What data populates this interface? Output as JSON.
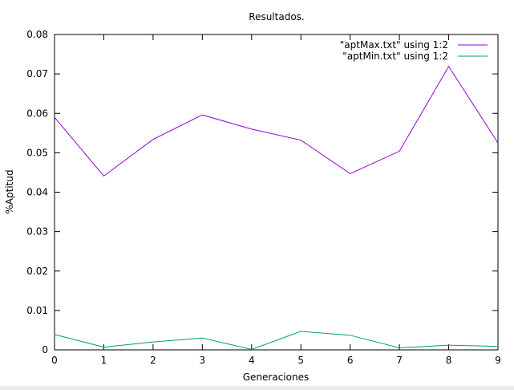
{
  "chart_data": {
    "type": "line",
    "title": "Resultados.",
    "xlabel": "Generaciones",
    "ylabel": "%Aptitud",
    "xlim": [
      0,
      9
    ],
    "ylim": [
      0,
      0.08
    ],
    "xticks": [
      0,
      1,
      2,
      3,
      4,
      5,
      6,
      7,
      8,
      9
    ],
    "yticks": [
      "0",
      "0.01",
      "0.02",
      "0.03",
      "0.04",
      "0.05",
      "0.06",
      "0.07",
      "0.08"
    ],
    "grid": false,
    "legend_position": "top-right",
    "x": [
      0,
      1,
      2,
      3,
      4,
      5,
      6,
      7,
      8,
      9
    ],
    "series": [
      {
        "name": "\"aptMax.txt\" using 1:2",
        "color": "#9400d3",
        "values": [
          0.059,
          0.0441,
          0.0534,
          0.0596,
          0.056,
          0.0532,
          0.0447,
          0.0504,
          0.0719,
          0.0525
        ]
      },
      {
        "name": "\"aptMin.txt\" using 1:2",
        "color": "#009e73",
        "values": [
          0.0039,
          0.0007,
          0.002,
          0.003,
          0.0001,
          0.0047,
          0.0037,
          0.0005,
          0.0012,
          0.0009
        ]
      }
    ]
  }
}
